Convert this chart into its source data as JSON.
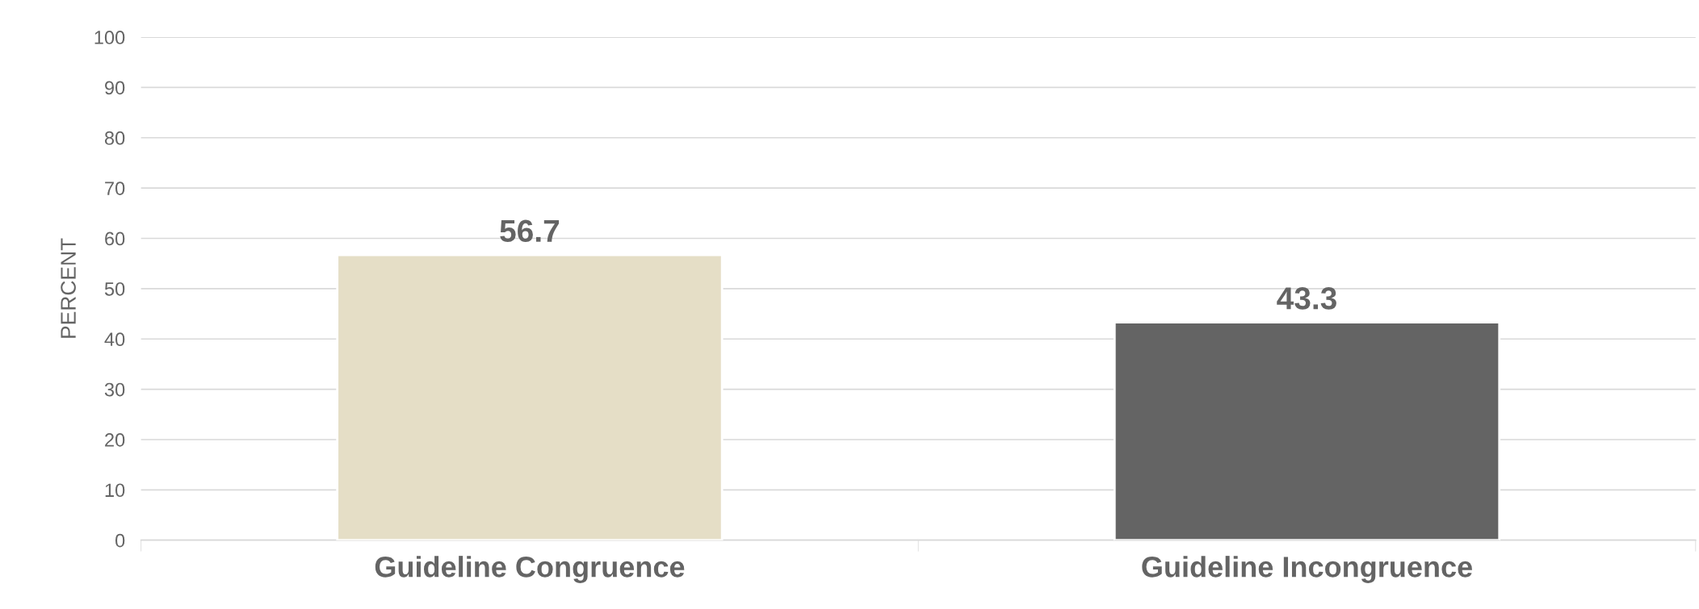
{
  "chart_data": {
    "type": "bar",
    "ylabel": "PERCENT",
    "categories": [
      "Guideline Congruence",
      "Guideline Incongruence"
    ],
    "values": [
      56.7,
      43.3
    ],
    "colors": [
      "#e5dec6",
      "#646464"
    ],
    "ylim": [
      0,
      100
    ],
    "yticks": [
      0,
      10,
      20,
      30,
      40,
      50,
      60,
      70,
      80,
      90,
      100
    ],
    "grid": "y",
    "data_labels": true
  }
}
